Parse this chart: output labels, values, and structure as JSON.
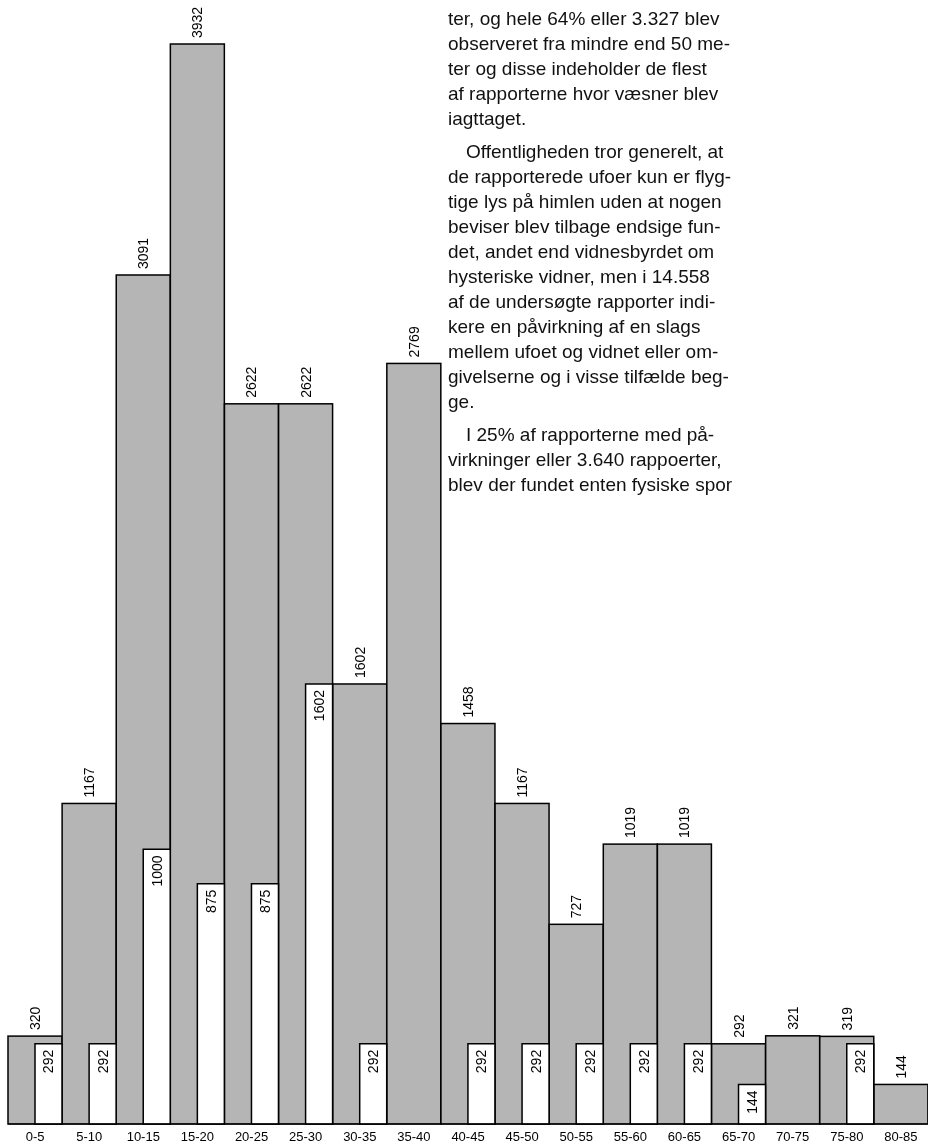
{
  "chart_data": {
    "type": "bar",
    "categories": [
      "0-5",
      "5-10",
      "10-15",
      "15-20",
      "20-25",
      "25-30",
      "30-35",
      "35-40",
      "40-45",
      "45-50",
      "50-55",
      "55-60",
      "60-65",
      "65-70",
      "70-75",
      "75-80",
      "80-85"
    ],
    "series": [
      {
        "color": "#b5b5b5",
        "values": [
          320,
          1167,
          3091,
          3932,
          2622,
          2622,
          1602,
          2769,
          1458,
          1167,
          727,
          1019,
          1019,
          292,
          321,
          319,
          144
        ]
      },
      {
        "color": "#ffffff",
        "values": [
          292,
          292,
          1000,
          875,
          875,
          1602,
          292,
          null,
          292,
          292,
          292,
          292,
          292,
          144,
          null,
          292,
          null
        ]
      }
    ],
    "data_labels": true,
    "grid": false,
    "legend": false,
    "annotations": [
      "ter, og hele 64% eller 3.327 blev",
      "observeret fra mindre end 50 me-",
      "ter og disse indeholder de flest",
      "af rapporterne hvor væsner blev",
      "iagttaget.",
      "Offentligheden tror generelt, at",
      "de rapporterede ufoer kun er flyg-",
      "tige lys på himlen uden at nogen",
      "beviser blev tilbage endsige fun-",
      "det, andet end vidnesbyrdet om",
      "hysteriske vidner, men i 14.558",
      "af de undersøgte rapporter indi-",
      "kere en påvirkning af en slags",
      "mellem ufoet og vidnet eller om-",
      "givelserne og i visse tilfælde beg-",
      "ge.",
      "I 25% af rapporterne med på-",
      "virkninger eller 3.640 rappoerter,",
      "blev der fundet enten fysiske spor"
    ]
  }
}
